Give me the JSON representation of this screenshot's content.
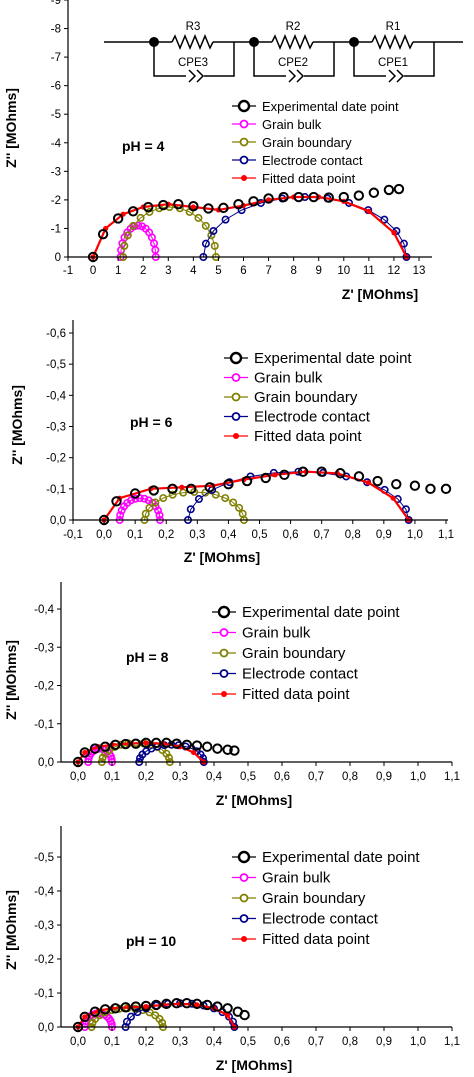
{
  "colors": {
    "experimental": "#000000",
    "grain_bulk": "#ff00ff",
    "grain_boundary": "#808000",
    "electrode_contact": "#00008b",
    "fitted": "#ff0000"
  },
  "circuit": {
    "resistors": [
      "R3",
      "R2",
      "R1"
    ],
    "cpes": [
      "CPE3",
      "CPE2",
      "CPE1"
    ]
  },
  "chart_data": [
    {
      "type": "scatter",
      "annotation": "pH = 4",
      "xlabel": "Z' [MOhms]",
      "ylabel": "Z'' [MOhms]",
      "xlim": [
        -1,
        13.5
      ],
      "ylim": [
        0,
        -9
      ],
      "x_ticks": [
        "-1",
        "0",
        "1",
        "2",
        "3",
        "4",
        "5",
        "6",
        "7",
        "8",
        "9",
        "10",
        "11",
        "12",
        "13"
      ],
      "y_ticks": [
        "0",
        "-1",
        "-2",
        "-3",
        "-4",
        "-5",
        "-6",
        "-7",
        "-8",
        "-9"
      ],
      "legend": [
        "Experimental date point",
        "Grain bulk",
        "Grain boundary",
        "Electrode contact",
        "Fitted data point"
      ],
      "legend_position": "right",
      "series": [
        {
          "name": "Grain bulk",
          "arc": {
            "start": 1.1,
            "end": 2.5,
            "peak": -1.1
          }
        },
        {
          "name": "Grain boundary",
          "arc": {
            "start": 1.2,
            "end": 4.9,
            "peak": -1.75
          }
        },
        {
          "name": "Electrode contact",
          "arc": {
            "start": 4.4,
            "end": 12.5,
            "peak": -2.1
          }
        },
        {
          "name": "Fitted data point",
          "points": [
            [
              0.0,
              0
            ],
            [
              0.5,
              -1.0
            ],
            [
              1.2,
              -1.5
            ],
            [
              2.0,
              -1.75
            ],
            [
              3.0,
              -1.85
            ],
            [
              4.0,
              -1.75
            ],
            [
              5.0,
              -1.65
            ],
            [
              6.0,
              -1.8
            ],
            [
              7.0,
              -2.0
            ],
            [
              8.0,
              -2.1
            ],
            [
              9.0,
              -2.1
            ],
            [
              10.0,
              -1.95
            ],
            [
              11.0,
              -1.6
            ],
            [
              12.0,
              -0.85
            ],
            [
              12.5,
              0
            ]
          ]
        },
        {
          "name": "Experimental date point",
          "points": [
            [
              0.0,
              0
            ],
            [
              0.4,
              -0.8
            ],
            [
              1.0,
              -1.35
            ],
            [
              1.6,
              -1.6
            ],
            [
              2.2,
              -1.75
            ],
            [
              2.8,
              -1.82
            ],
            [
              3.4,
              -1.85
            ],
            [
              4.0,
              -1.78
            ],
            [
              4.6,
              -1.7
            ],
            [
              5.2,
              -1.72
            ],
            [
              5.8,
              -1.85
            ],
            [
              6.4,
              -1.95
            ],
            [
              7.0,
              -2.05
            ],
            [
              7.6,
              -2.1
            ],
            [
              8.2,
              -2.1
            ],
            [
              8.8,
              -2.1
            ],
            [
              9.4,
              -2.08
            ],
            [
              10.0,
              -2.1
            ],
            [
              10.6,
              -2.15
            ],
            [
              11.2,
              -2.25
            ],
            [
              11.8,
              -2.35
            ],
            [
              12.2,
              -2.38
            ]
          ]
        }
      ]
    },
    {
      "type": "scatter",
      "annotation": "pH = 6",
      "xlabel": "Z' [MOhms]",
      "ylabel": "Z'' [MOhms]",
      "xlim": [
        -0.1,
        1.1
      ],
      "ylim": [
        0,
        -0.65
      ],
      "x_ticks": [
        "-0,1",
        "0,0",
        "0,1",
        "0,2",
        "0,3",
        "0,4",
        "0,5",
        "0,6",
        "0,7",
        "0,8",
        "0,9",
        "1,0",
        "1,1"
      ],
      "y_ticks": [
        "0,0",
        "-0,1",
        "-0,2",
        "-0,3",
        "-0,4",
        "-0,5",
        "-0,6"
      ],
      "legend": [
        "Experimental date point",
        "Grain bulk",
        "Grain boundary",
        "Electrode contact",
        "Fitted data point"
      ],
      "legend_position": "right",
      "series": [
        {
          "name": "Grain bulk",
          "arc": {
            "start": 0.05,
            "end": 0.18,
            "peak": -0.07
          }
        },
        {
          "name": "Grain boundary",
          "arc": {
            "start": 0.13,
            "end": 0.45,
            "peak": -0.09
          }
        },
        {
          "name": "Electrode contact",
          "arc": {
            "start": 0.27,
            "end": 0.98,
            "peak": -0.155
          }
        },
        {
          "name": "Fitted data point",
          "points": [
            [
              0.0,
              0
            ],
            [
              0.05,
              -0.07
            ],
            [
              0.15,
              -0.1
            ],
            [
              0.25,
              -0.105
            ],
            [
              0.35,
              -0.11
            ],
            [
              0.45,
              -0.13
            ],
            [
              0.55,
              -0.145
            ],
            [
              0.65,
              -0.155
            ],
            [
              0.75,
              -0.15
            ],
            [
              0.85,
              -0.12
            ],
            [
              0.93,
              -0.07
            ],
            [
              0.98,
              0
            ]
          ]
        },
        {
          "name": "Experimental date point",
          "points": [
            [
              0.0,
              0
            ],
            [
              0.04,
              -0.06
            ],
            [
              0.1,
              -0.085
            ],
            [
              0.16,
              -0.095
            ],
            [
              0.22,
              -0.1
            ],
            [
              0.28,
              -0.1
            ],
            [
              0.34,
              -0.105
            ],
            [
              0.4,
              -0.115
            ],
            [
              0.46,
              -0.125
            ],
            [
              0.52,
              -0.135
            ],
            [
              0.58,
              -0.145
            ],
            [
              0.64,
              -0.155
            ],
            [
              0.7,
              -0.155
            ],
            [
              0.76,
              -0.15
            ],
            [
              0.82,
              -0.14
            ],
            [
              0.88,
              -0.125
            ],
            [
              0.94,
              -0.115
            ],
            [
              1.0,
              -0.11
            ],
            [
              1.05,
              -0.1
            ],
            [
              1.1,
              -0.1
            ]
          ]
        }
      ]
    },
    {
      "type": "scatter",
      "annotation": "pH = 8",
      "xlabel": "Z' [MOhms]",
      "ylabel": "Z'' [MOhms]",
      "xlim": [
        -0.05,
        1.1
      ],
      "ylim": [
        0,
        -0.45
      ],
      "x_ticks": [
        "0,0",
        "0,1",
        "0,2",
        "0,3",
        "0,4",
        "0,5",
        "0,6",
        "0,7",
        "0,8",
        "0,9",
        "1,0",
        "1,1"
      ],
      "y_ticks": [
        "0,0",
        "-0,1",
        "-0,2",
        "-0,3",
        "-0,4"
      ],
      "legend": [
        "Experimental date point",
        "Grain bulk",
        "Grain boundary",
        "Electrode contact",
        "Fitted data point"
      ],
      "legend_position": "right",
      "series": [
        {
          "name": "Grain bulk",
          "arc": {
            "start": 0.03,
            "end": 0.1,
            "peak": -0.035
          }
        },
        {
          "name": "Grain boundary",
          "arc": {
            "start": 0.07,
            "end": 0.27,
            "peak": -0.05
          }
        },
        {
          "name": "Electrode contact",
          "arc": {
            "start": 0.18,
            "end": 0.37,
            "peak": -0.045
          }
        },
        {
          "name": "Fitted data point",
          "points": [
            [
              0.0,
              0
            ],
            [
              0.02,
              -0.025
            ],
            [
              0.06,
              -0.04
            ],
            [
              0.1,
              -0.045
            ],
            [
              0.15,
              -0.048
            ],
            [
              0.2,
              -0.05
            ],
            [
              0.25,
              -0.048
            ],
            [
              0.3,
              -0.04
            ],
            [
              0.34,
              -0.025
            ],
            [
              0.37,
              0
            ]
          ]
        },
        {
          "name": "Experimental date point",
          "points": [
            [
              0.0,
              0
            ],
            [
              0.02,
              -0.025
            ],
            [
              0.05,
              -0.035
            ],
            [
              0.08,
              -0.04
            ],
            [
              0.11,
              -0.045
            ],
            [
              0.14,
              -0.047
            ],
            [
              0.17,
              -0.048
            ],
            [
              0.2,
              -0.05
            ],
            [
              0.23,
              -0.05
            ],
            [
              0.26,
              -0.05
            ],
            [
              0.29,
              -0.048
            ],
            [
              0.32,
              -0.045
            ],
            [
              0.35,
              -0.043
            ],
            [
              0.38,
              -0.04
            ],
            [
              0.41,
              -0.035
            ],
            [
              0.44,
              -0.032
            ],
            [
              0.46,
              -0.03
            ]
          ]
        }
      ]
    },
    {
      "type": "scatter",
      "annotation": "pH = 10",
      "xlabel": "Z' [MOhms]",
      "ylabel": "Z'' [MOhms]",
      "xlim": [
        -0.05,
        1.1
      ],
      "ylim": [
        0,
        -0.58
      ],
      "x_ticks": [
        "0,0",
        "0,1",
        "0,2",
        "0,3",
        "0,4",
        "0,5",
        "0,6",
        "0,7",
        "0,8",
        "0,9",
        "1,0",
        "1,1"
      ],
      "y_ticks": [
        "0,0",
        "-0,1",
        "-0,2",
        "-0,3",
        "-0,4",
        "-0,5"
      ],
      "legend": [
        "Experimental date point",
        "Grain bulk",
        "Grain boundary",
        "Electrode contact",
        "Fitted data point"
      ],
      "legend_position": "right",
      "series": [
        {
          "name": "Grain bulk",
          "arc": {
            "start": 0.02,
            "end": 0.1,
            "peak": -0.04
          }
        },
        {
          "name": "Grain boundary",
          "arc": {
            "start": 0.04,
            "end": 0.25,
            "peak": -0.055
          }
        },
        {
          "name": "Electrode contact",
          "arc": {
            "start": 0.14,
            "end": 0.46,
            "peak": -0.07
          }
        },
        {
          "name": "Fitted data point",
          "points": [
            [
              0.0,
              0
            ],
            [
              0.02,
              -0.03
            ],
            [
              0.06,
              -0.048
            ],
            [
              0.1,
              -0.055
            ],
            [
              0.15,
              -0.058
            ],
            [
              0.2,
              -0.06
            ],
            [
              0.25,
              -0.065
            ],
            [
              0.3,
              -0.068
            ],
            [
              0.35,
              -0.065
            ],
            [
              0.4,
              -0.055
            ],
            [
              0.44,
              -0.035
            ],
            [
              0.46,
              0
            ]
          ]
        },
        {
          "name": "Experimental date point",
          "points": [
            [
              0.0,
              0
            ],
            [
              0.02,
              -0.03
            ],
            [
              0.05,
              -0.045
            ],
            [
              0.08,
              -0.052
            ],
            [
              0.11,
              -0.055
            ],
            [
              0.14,
              -0.058
            ],
            [
              0.17,
              -0.06
            ],
            [
              0.2,
              -0.062
            ],
            [
              0.23,
              -0.065
            ],
            [
              0.26,
              -0.068
            ],
            [
              0.29,
              -0.07
            ],
            [
              0.32,
              -0.07
            ],
            [
              0.35,
              -0.068
            ],
            [
              0.38,
              -0.065
            ],
            [
              0.41,
              -0.06
            ],
            [
              0.44,
              -0.055
            ],
            [
              0.47,
              -0.045
            ],
            [
              0.49,
              -0.035
            ]
          ]
        }
      ]
    }
  ]
}
